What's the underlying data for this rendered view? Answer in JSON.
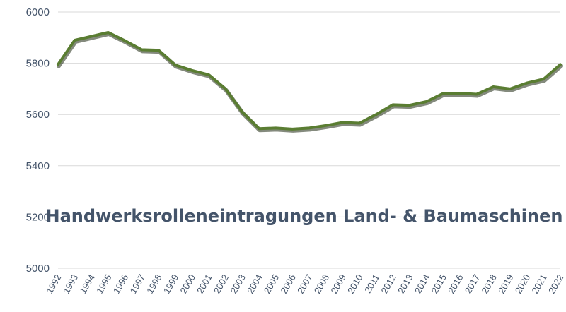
{
  "chart_data": {
    "type": "line",
    "title": "Handwerksrolleneintragungen Land- & Baumaschinen",
    "xlabel": "",
    "ylabel": "",
    "ylim": [
      5000,
      6000
    ],
    "yticks": [
      5000,
      5200,
      5400,
      5600,
      5800,
      6000
    ],
    "grid": true,
    "legend": "none",
    "colors": {
      "line": "#5a7d32",
      "grid": "#d9d9d9",
      "text": "#44546a"
    },
    "x": [
      "1992",
      "1993",
      "1994",
      "1995",
      "1996",
      "1997",
      "1998",
      "1999",
      "2000",
      "2001",
      "2002",
      "2003",
      "2004",
      "2005",
      "2006",
      "2007",
      "2008",
      "2009",
      "2010",
      "2011",
      "2012",
      "2013",
      "2014",
      "2015",
      "2016",
      "2017",
      "2018",
      "2019",
      "2020",
      "2021",
      "2022"
    ],
    "series": [
      {
        "values": [
          5795,
          5890,
          5905,
          5920,
          5888,
          5853,
          5851,
          5793,
          5772,
          5755,
          5700,
          5610,
          5545,
          5547,
          5543,
          5547,
          5557,
          5569,
          5566,
          5600,
          5638,
          5636,
          5650,
          5682,
          5683,
          5679,
          5708,
          5700,
          5723,
          5738,
          5795
        ]
      }
    ]
  }
}
